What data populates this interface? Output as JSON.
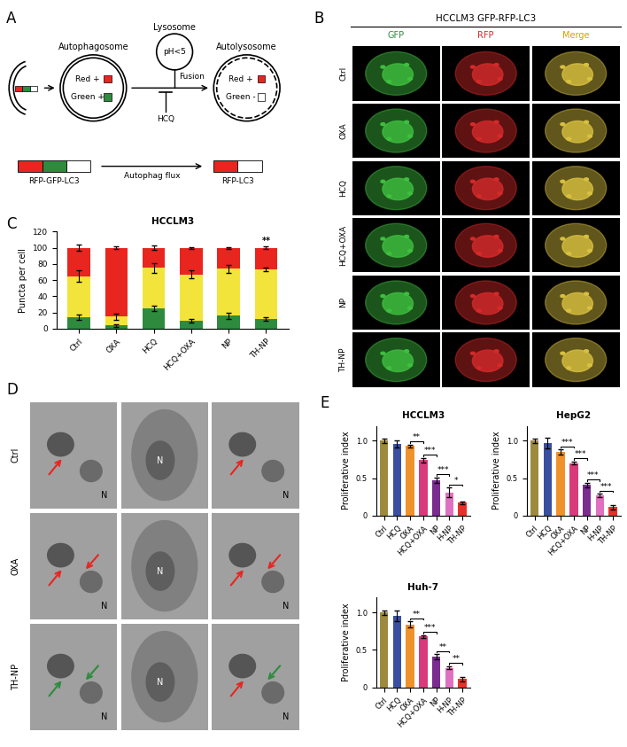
{
  "panel_labels": [
    "A",
    "B",
    "C",
    "D",
    "E"
  ],
  "diagram": {
    "lysosome": {
      "title": "Lysosome",
      "text": "pH<5"
    },
    "autophagosome": {
      "title": "Autophagosome",
      "items": [
        "Red +",
        "Green +"
      ]
    },
    "autolysosome": {
      "title": "Autolysosome",
      "items": [
        "Red +",
        "Green -"
      ]
    },
    "fusion": "Fusion",
    "inhibitor": "HCQ",
    "construct_before": "RFP-GFP-LC3",
    "flux": "Autophag flux",
    "construct_after": "RFP-LC3"
  },
  "micrographs": {
    "title": "HCCLM3 GFP-RFP-LC3",
    "columns": [
      "GFP",
      "RFP",
      "Merge"
    ],
    "rows": [
      "Ctrl",
      "OXA",
      "HCQ",
      "HCQ+OXA",
      "NP",
      "TH-NP"
    ]
  },
  "tem": {
    "rows": [
      "Ctrl",
      "OXA",
      "TH-NP"
    ],
    "nucleus_label": "N"
  },
  "chart_data": [
    {
      "type": "bar",
      "stacked": true,
      "title": "HCCLM3",
      "y_label": "Puncta per cell",
      "categories": [
        "Ctrl",
        "OXA",
        "HCQ",
        "HCQ+OXA",
        "NP",
        "TH-NP"
      ],
      "series": [
        {
          "color": "#2e8b3e",
          "values": [
            14,
            4,
            25,
            10,
            16,
            12
          ],
          "errors": [
            3,
            1.5,
            3,
            2,
            4,
            2
          ]
        },
        {
          "color": "#f2e43a",
          "values": [
            51,
            11,
            50,
            57,
            58,
            61
          ],
          "errors": [
            7,
            4,
            6,
            5,
            5,
            2
          ]
        },
        {
          "color": "#e8251f",
          "values": [
            35,
            85,
            25,
            33,
            26,
            27
          ],
          "errors": [
            4,
            2,
            3,
            1,
            1,
            2
          ]
        }
      ],
      "ylim": [
        0,
        120
      ],
      "yticks": [
        0,
        20,
        40,
        60,
        80,
        100,
        120
      ],
      "annotations": [
        {
          "category": "TH-NP",
          "label": "**"
        }
      ]
    },
    {
      "type": "bar",
      "title": "HCCLM3",
      "y_label": "Proliferative index",
      "categories": [
        "Ctrl",
        "HCQ",
        "OXA",
        "HCQ+OXA",
        "NP",
        "H-NP",
        "TH-NP"
      ],
      "values": [
        1.0,
        0.96,
        0.93,
        0.74,
        0.47,
        0.31,
        0.17
      ],
      "errors": [
        0.03,
        0.05,
        0.02,
        0.03,
        0.04,
        0.06,
        0.02
      ],
      "colors": [
        "#9e8a3c",
        "#3a4fa0",
        "#f0922b",
        "#d93a7a",
        "#7a2c8f",
        "#e070c0",
        "#e8302a"
      ],
      "ylim": [
        0,
        1.2
      ],
      "yticks": [
        0,
        0.5,
        {
          "value": 1,
          "label": "1.0"
        }
      ],
      "significance": [
        {
          "from": "OXA",
          "to": "HCQ+OXA",
          "label": "**"
        },
        {
          "from": "HCQ+OXA",
          "to": "NP",
          "label": "***"
        },
        {
          "from": "NP",
          "to": "H-NP",
          "label": "***"
        },
        {
          "from": "H-NP",
          "to": "TH-NP",
          "label": "*"
        }
      ]
    },
    {
      "type": "bar",
      "title": "HepG2",
      "y_label": "Proliferative index",
      "categories": [
        "Ctrl",
        "HCQ",
        "OXA",
        "HCQ+OXA",
        "NP",
        "H-NP",
        "TH-NP"
      ],
      "values": [
        1.0,
        0.97,
        0.85,
        0.7,
        0.41,
        0.27,
        0.11
      ],
      "errors": [
        0.03,
        0.07,
        0.03,
        0.02,
        0.03,
        0.02,
        0.03
      ],
      "colors": [
        "#9e8a3c",
        "#3a4fa0",
        "#f0922b",
        "#d93a7a",
        "#7a2c8f",
        "#e070c0",
        "#e8302a"
      ],
      "ylim": [
        0,
        1.2
      ],
      "yticks": [
        0,
        0.5,
        {
          "value": 1,
          "label": "1.0"
        }
      ],
      "significance": [
        {
          "from": "OXA",
          "to": "HCQ+OXA",
          "label": "***"
        },
        {
          "from": "HCQ+OXA",
          "to": "NP",
          "label": "***"
        },
        {
          "from": "NP",
          "to": "H-NP",
          "label": "***"
        },
        {
          "from": "H-NP",
          "to": "TH-NP",
          "label": "***"
        }
      ]
    },
    {
      "type": "bar",
      "title": "Huh-7",
      "y_label": "Proliferative index",
      "categories": [
        "Ctrl",
        "HCQ",
        "OXA",
        "HCQ+OXA",
        "NP",
        "H-NP",
        "TH-NP"
      ],
      "values": [
        1.0,
        0.96,
        0.84,
        0.68,
        0.41,
        0.26,
        0.11
      ],
      "errors": [
        0.03,
        0.07,
        0.04,
        0.02,
        0.03,
        0.02,
        0.03
      ],
      "colors": [
        "#9e8a3c",
        "#3a4fa0",
        "#f0922b",
        "#d93a7a",
        "#7a2c8f",
        "#e070c0",
        "#e8302a"
      ],
      "ylim": [
        0,
        1.2
      ],
      "yticks": [
        0,
        0.5,
        {
          "value": 1,
          "label": "1.0"
        }
      ],
      "significance": [
        {
          "from": "OXA",
          "to": "HCQ+OXA",
          "label": "**"
        },
        {
          "from": "HCQ+OXA",
          "to": "NP",
          "label": "***"
        },
        {
          "from": "NP",
          "to": "H-NP",
          "label": "**"
        },
        {
          "from": "H-NP",
          "to": "TH-NP",
          "label": "**"
        }
      ]
    }
  ]
}
